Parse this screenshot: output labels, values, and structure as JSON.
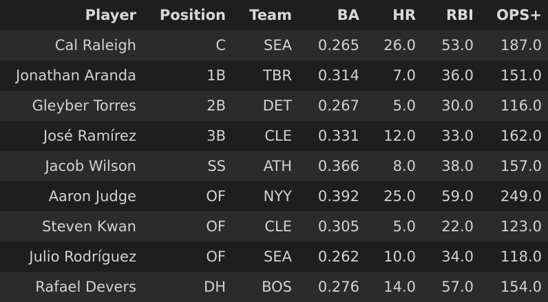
{
  "table": {
    "columns": [
      "Player",
      "Position",
      "Team",
      "BA",
      "HR",
      "RBI",
      "OPS+"
    ],
    "rows": [
      [
        "Cal Raleigh",
        "C",
        "SEA",
        "0.265",
        "26.0",
        "53.0",
        "187.0"
      ],
      [
        "Jonathan Aranda",
        "1B",
        "TBR",
        "0.314",
        "7.0",
        "36.0",
        "151.0"
      ],
      [
        "Gleyber Torres",
        "2B",
        "DET",
        "0.267",
        "5.0",
        "30.0",
        "116.0"
      ],
      [
        "José Ramírez",
        "3B",
        "CLE",
        "0.331",
        "12.0",
        "33.0",
        "162.0"
      ],
      [
        "Jacob Wilson",
        "SS",
        "ATH",
        "0.366",
        "8.0",
        "38.0",
        "157.0"
      ],
      [
        "Aaron Judge",
        "OF",
        "NYY",
        "0.392",
        "25.0",
        "59.0",
        "249.0"
      ],
      [
        "Steven Kwan",
        "OF",
        "CLE",
        "0.305",
        "5.0",
        "22.0",
        "123.0"
      ],
      [
        "Julio Rodríguez",
        "OF",
        "SEA",
        "0.262",
        "10.0",
        "34.0",
        "118.0"
      ],
      [
        "Rafael Devers",
        "DH",
        "BOS",
        "0.276",
        "14.0",
        "57.0",
        "154.0"
      ]
    ]
  }
}
